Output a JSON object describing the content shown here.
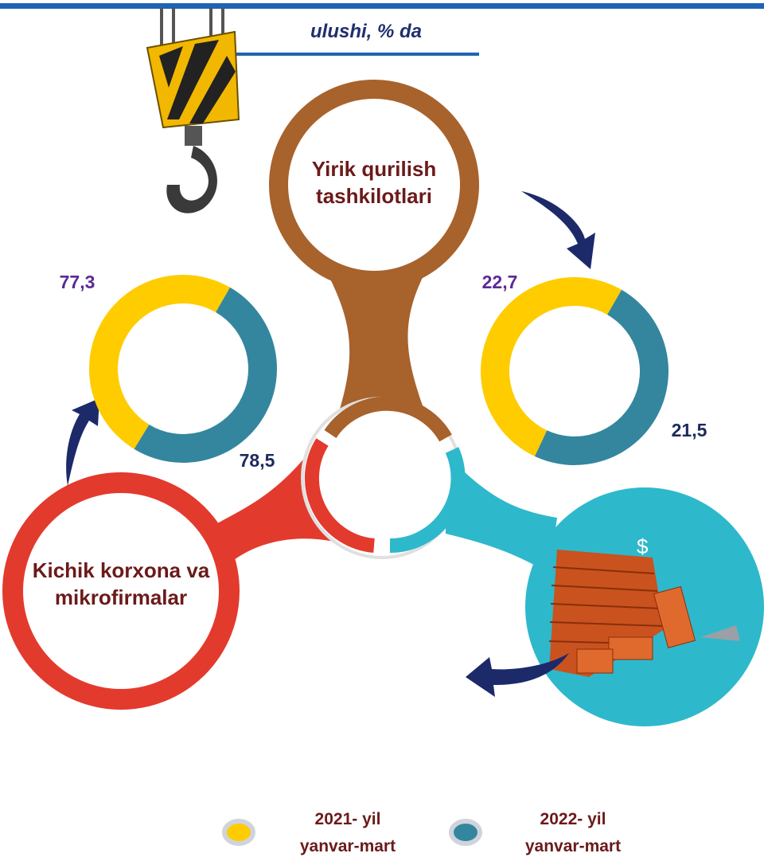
{
  "chart_data": {
    "type": "donut",
    "title": "ulushi, % da",
    "categories": [
      "Kichik korxona va mikrofirmalar",
      "Yirik qurilish tashkilotlari"
    ],
    "series": [
      {
        "name": "2021- yil yanvar-mart",
        "color": "#ffcc00",
        "label_color": "#5b2a96",
        "values": [
          77.3,
          22.7
        ],
        "value_labels": [
          "77,3",
          "22,7"
        ]
      },
      {
        "name": "2022- yil yanvar-mart",
        "color": "#34869e",
        "label_color": "#1c2a5e",
        "values": [
          78.5,
          21.5
        ],
        "value_labels": [
          "78,5",
          "21,5"
        ]
      }
    ]
  }
}
